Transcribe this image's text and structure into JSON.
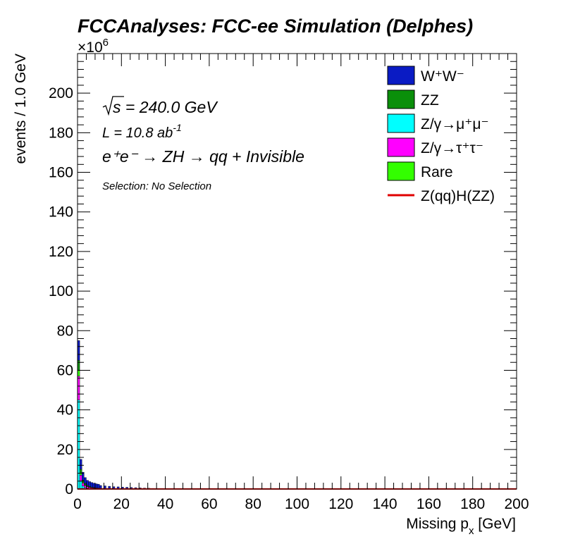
{
  "chart_data": {
    "type": "bar",
    "title": "FCCAnalyses: FCC-ee Simulation (Delphes)",
    "exponent_label": "×10",
    "exponent_power": "6",
    "xlabel": "Missing p",
    "xlabel_sub": "x",
    "xlabel_unit": " [GeV]",
    "ylabel": "events / 1.0 GeV",
    "xlim": [
      0,
      200
    ],
    "ylim": [
      0,
      220
    ],
    "y_scale_factor": 1000000,
    "xticks": [
      0,
      20,
      40,
      60,
      80,
      100,
      120,
      140,
      160,
      180,
      200
    ],
    "yticks": [
      0,
      20,
      40,
      60,
      80,
      100,
      120,
      140,
      160,
      180,
      200
    ],
    "bin_width": 1.0,
    "stacked": true,
    "annotations": {
      "sqrt_s": "s = 240.0 GeV",
      "lumi_prefix": "L = 10.8 ab",
      "lumi_power": "-1",
      "process": "e⁺e⁻ → ZH → qq + Invisible",
      "selection": "Selection: No Selection"
    },
    "legend": {
      "position": "top-right",
      "entries": [
        {
          "label": "W⁺W⁻",
          "color": "#0a1bc4",
          "style": "fill"
        },
        {
          "label": "ZZ",
          "color": "#0a8f0a",
          "style": "fill"
        },
        {
          "label": "Z/γ→μ⁺μ⁻",
          "color": "#00ffff",
          "style": "fill"
        },
        {
          "label": "Z/γ→τ⁺τ⁻",
          "color": "#ff00ff",
          "style": "fill"
        },
        {
          "label": "Rare",
          "color": "#33ff00",
          "style": "fill"
        },
        {
          "label": "Z(qq)H(ZZ)",
          "color": "#e00000",
          "style": "line"
        }
      ]
    },
    "series": [
      {
        "name": "Z/γ→μ⁺μ⁻",
        "color": "#00ffff",
        "x": [
          0,
          1,
          2,
          3,
          4,
          5,
          6,
          7,
          8,
          9
        ],
        "values": [
          45,
          4,
          1.5,
          0.8,
          0.5,
          0.3,
          0.2,
          0.15,
          0.1,
          0.1
        ]
      },
      {
        "name": "Z/γ→τ⁺τ⁻",
        "color": "#ff00ff",
        "x": [
          0,
          1,
          2,
          3,
          4,
          5,
          6,
          7,
          8,
          9
        ],
        "values": [
          12,
          3,
          1.5,
          1.0,
          0.7,
          0.5,
          0.4,
          0.3,
          0.2,
          0.2
        ]
      },
      {
        "name": "Rare",
        "color": "#33ff00",
        "x": [
          0,
          1,
          2,
          3,
          4,
          5,
          6,
          7,
          8,
          9
        ],
        "values": [
          3,
          1,
          0.5,
          0.3,
          0.2,
          0.15,
          0.1,
          0.1,
          0.05,
          0.05
        ]
      },
      {
        "name": "ZZ",
        "color": "#0a8f0a",
        "x": [
          0,
          1,
          2,
          3,
          4,
          5,
          6,
          7,
          8,
          9
        ],
        "values": [
          5,
          2,
          1,
          0.7,
          0.5,
          0.4,
          0.3,
          0.2,
          0.2,
          0.1
        ]
      },
      {
        "name": "W⁺W⁻",
        "color": "#0a1bc4",
        "x": [
          0,
          1,
          2,
          3,
          4,
          5,
          6,
          7,
          8,
          9,
          10,
          12,
          14,
          16,
          18,
          20,
          22,
          24,
          26,
          28,
          30,
          32,
          34,
          36,
          38
        ],
        "values": [
          10,
          5,
          4,
          3,
          2.5,
          2.4,
          2.3,
          2.2,
          2.1,
          2.0,
          1.8,
          1.6,
          1.4,
          1.2,
          1.1,
          1.0,
          0.9,
          0.8,
          0.7,
          0.6,
          0.5,
          0.4,
          0.3,
          0.25,
          0.2
        ]
      },
      {
        "name": "Z(qq)H(ZZ)",
        "color": "#e00000",
        "style": "line",
        "x": [
          0,
          200
        ],
        "values": [
          0.05,
          0.05
        ]
      }
    ]
  }
}
